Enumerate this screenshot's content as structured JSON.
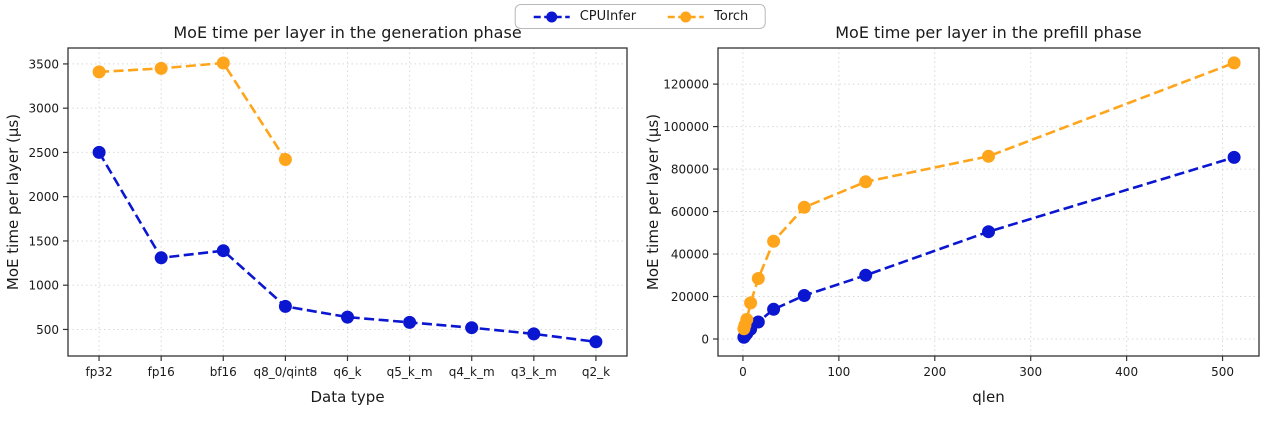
{
  "page": {
    "background": "#ffffff",
    "text_color": "#1a1a1a",
    "grid_color": "#d9d9d9",
    "spine_color": "#333333"
  },
  "legend": {
    "items": [
      {
        "label": "CPUInfer",
        "color": "#0b16d0"
      },
      {
        "label": "Torch",
        "color": "#ffa51c"
      }
    ]
  },
  "chart_data": [
    {
      "type": "line",
      "title": "MoE time per layer in the generation phase",
      "xlabel": "Data type",
      "ylabel": "MoE time per layer (µs)",
      "x_type": "category",
      "categories": [
        "fp32",
        "fp16",
        "bf16",
        "q8_0/qint8",
        "q6_k",
        "q5_k_m",
        "q4_k_m",
        "q3_k_m",
        "q2_k"
      ],
      "yticks": [
        500,
        1000,
        1500,
        2000,
        2500,
        3000,
        3500
      ],
      "ylim": [
        200,
        3680
      ],
      "grid": true,
      "linestyle": "dashed",
      "marker": "circle",
      "legend_position": "top-center-shared",
      "series": [
        {
          "name": "CPUInfer",
          "color": "#0b16d0",
          "values": [
            2500,
            1310,
            1390,
            760,
            640,
            580,
            520,
            450,
            360
          ]
        },
        {
          "name": "Torch",
          "color": "#ffa51c",
          "values": [
            3410,
            3450,
            3510,
            2420,
            null,
            null,
            null,
            null,
            null
          ]
        }
      ]
    },
    {
      "type": "line",
      "title": "MoE time per layer in the prefill phase",
      "xlabel": "qlen",
      "ylabel": "MoE time per layer (µs)",
      "x_type": "linear",
      "x": [
        1,
        2,
        4,
        8,
        16,
        32,
        64,
        128,
        256,
        512
      ],
      "xticks": [
        0,
        100,
        200,
        300,
        400,
        500
      ],
      "xlim": [
        -26,
        538
      ],
      "yticks": [
        0,
        20000,
        40000,
        60000,
        80000,
        100000,
        120000
      ],
      "ylim": [
        -8000,
        137000
      ],
      "grid": true,
      "linestyle": "dashed",
      "marker": "circle",
      "legend_position": "top-center-shared",
      "series": [
        {
          "name": "CPUInfer",
          "color": "#0b16d0",
          "values": [
            800,
            1500,
            2600,
            4600,
            8000,
            14000,
            20500,
            30000,
            50500,
            85500
          ]
        },
        {
          "name": "Torch",
          "color": "#ffa51c",
          "values": [
            4800,
            6500,
            9200,
            17000,
            28500,
            46000,
            62000,
            74000,
            86000,
            130000
          ]
        }
      ]
    }
  ]
}
